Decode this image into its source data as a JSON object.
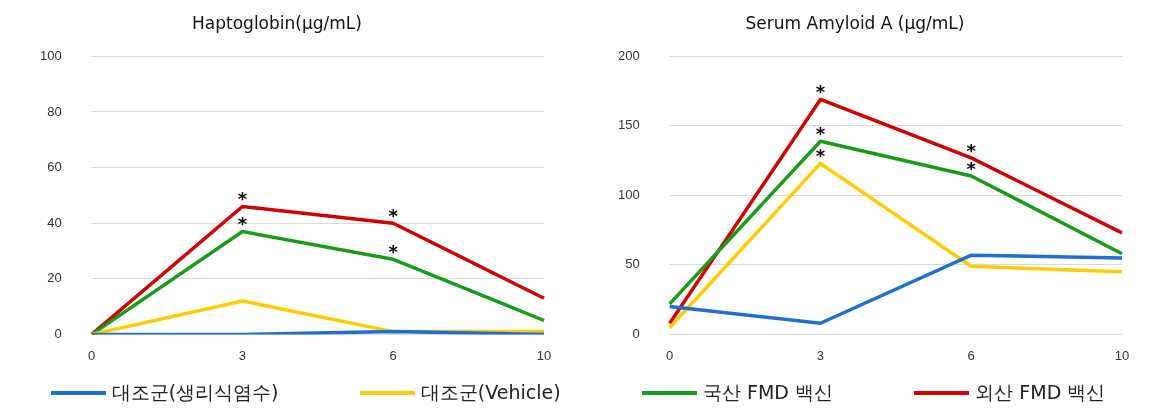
{
  "chart_data": [
    {
      "type": "line",
      "title": "Haptoglobin(μg/mL)",
      "categories": [
        "0",
        "3",
        "6",
        "10"
      ],
      "ylim": [
        0,
        100
      ],
      "yticks": [
        0,
        20,
        40,
        60,
        80,
        100
      ],
      "grid": "y",
      "legend": "bottom",
      "series": [
        {
          "name": "대조군(생리식염수)",
          "color": "#1f6fcf",
          "values": [
            0,
            0,
            1,
            0
          ]
        },
        {
          "name": "대조군(Vehicle)",
          "color": "#ffcc00",
          "values": [
            0,
            12,
            1,
            1
          ]
        },
        {
          "name": "국산 FMD 백신",
          "color": "#1a9a1a",
          "values": [
            0,
            37,
            27,
            5
          ]
        },
        {
          "name": "외산 FMD 백신",
          "color": "#cc0000",
          "values": [
            0,
            46,
            40,
            13
          ]
        }
      ],
      "annotations": [
        {
          "text": "*",
          "x": "3",
          "y": 46
        },
        {
          "text": "*",
          "x": "3",
          "y": 37
        },
        {
          "text": "*",
          "x": "6",
          "y": 40
        },
        {
          "text": "*",
          "x": "6",
          "y": 27
        }
      ]
    },
    {
      "type": "line",
      "title": "Serum Amyloid A (μg/mL)",
      "categories": [
        "0",
        "3",
        "6",
        "10"
      ],
      "ylim": [
        0,
        200
      ],
      "yticks": [
        0,
        50,
        100,
        150,
        200
      ],
      "grid": "y",
      "series": [
        {
          "color": "#1f6fcf",
          "values": [
            20,
            8,
            57,
            55
          ]
        },
        {
          "color": "#ffcc00",
          "values": [
            5,
            123,
            49,
            45
          ]
        },
        {
          "color": "#1a9a1a",
          "values": [
            22,
            139,
            114,
            58
          ]
        },
        {
          "color": "#cc0000",
          "values": [
            8,
            169,
            127,
            73
          ]
        }
      ],
      "annotations": [
        {
          "text": "*",
          "x": "3",
          "y": 169
        },
        {
          "text": "*",
          "x": "3",
          "y": 139
        },
        {
          "text": "*",
          "x": "3",
          "y": 123
        },
        {
          "text": "*",
          "x": "6",
          "y": 127
        },
        {
          "text": "*",
          "x": "6",
          "y": 114
        }
      ]
    }
  ]
}
